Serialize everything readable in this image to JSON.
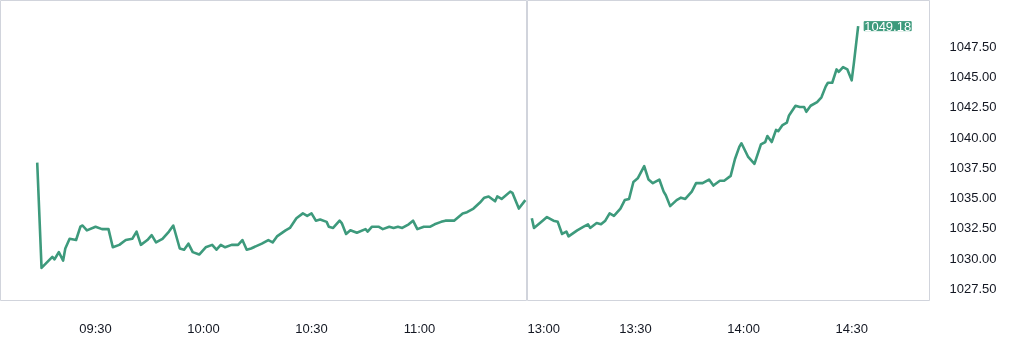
{
  "chart_data": [
    {
      "type": "line",
      "tick_labels": "x",
      "x": [
        9.23,
        9.25,
        9.3,
        9.31,
        9.33,
        9.35,
        9.36,
        9.38,
        9.41,
        9.43,
        9.44,
        9.46,
        9.5,
        9.53,
        9.56,
        9.58,
        9.61,
        9.64,
        9.67,
        9.69,
        9.71,
        9.74,
        9.76,
        9.78,
        9.81,
        9.84,
        9.86,
        9.89,
        9.91,
        9.93,
        9.95,
        9.98,
        10.01,
        10.04,
        10.06,
        10.08,
        10.1,
        10.13,
        10.16,
        10.18,
        10.2,
        10.22,
        10.27,
        10.3,
        10.32,
        10.34,
        10.38,
        10.4,
        10.43,
        10.46,
        10.48,
        10.5,
        10.52,
        10.54,
        10.57,
        10.58,
        10.6,
        10.63,
        10.64,
        10.66,
        10.68,
        10.71,
        10.75,
        10.76,
        10.78,
        10.81,
        10.83,
        10.86,
        10.88,
        10.9,
        10.92,
        10.95,
        10.97,
        10.99,
        11.02,
        11.05,
        11.07,
        11.1,
        11.12,
        11.16,
        11.2,
        11.22,
        11.25,
        11.28,
        11.3,
        11.32,
        11.35,
        11.36,
        11.38,
        11.42,
        11.43,
        11.46,
        11.49
      ],
      "series": [
        {
          "color": "#3d9a7c",
          "values": [
            1037.9,
            1029.2,
            1030.1,
            1029.9,
            1030.5,
            1029.8,
            1030.8,
            1031.6,
            1031.5,
            1032.6,
            1032.7,
            1032.3,
            1032.6,
            1032.4,
            1032.4,
            1030.9,
            1031.1,
            1031.5,
            1031.6,
            1032.2,
            1031.1,
            1031.5,
            1031.9,
            1031.3,
            1031.6,
            1032.2,
            1032.7,
            1030.8,
            1030.7,
            1031.2,
            1030.5,
            1030.3,
            1030.9,
            1031.1,
            1030.7,
            1031.1,
            1030.9,
            1031.1,
            1031.1,
            1031.5,
            1030.7,
            1030.8,
            1031.2,
            1031.5,
            1031.3,
            1031.8,
            1032.3,
            1032.5,
            1033.3,
            1033.7,
            1033.5,
            1033.7,
            1033.1,
            1033.2,
            1033.0,
            1032.6,
            1032.5,
            1033.1,
            1032.9,
            1032.0,
            1032.3,
            1032.1,
            1032.4,
            1032.2,
            1032.6,
            1032.6,
            1032.4,
            1032.6,
            1032.5,
            1032.6,
            1032.5,
            1032.8,
            1033.1,
            1032.4,
            1032.6,
            1032.6,
            1032.8,
            1033.0,
            1033.1,
            1033.1,
            1033.7,
            1033.8,
            1034.1,
            1034.6,
            1035.0,
            1035.1,
            1034.7,
            1035.1,
            1034.9,
            1035.5,
            1035.4,
            1034.1,
            1034.8
          ]
        }
      ],
      "xlim": [
        9.06,
        11.5
      ],
      "xticks": [
        {
          "value": 9.5,
          "label": "09:30"
        },
        {
          "value": 10,
          "label": "10:00"
        },
        {
          "value": 10.5,
          "label": "10:30"
        },
        {
          "value": 11,
          "label": "11:00"
        }
      ],
      "ylim": [
        1026.5,
        1051.3
      ]
    },
    {
      "type": "line",
      "x": [
        13.02,
        13.03,
        13.07,
        13.09,
        13.12,
        13.14,
        13.16,
        13.18,
        13.19,
        13.23,
        13.26,
        13.28,
        13.29,
        13.32,
        13.34,
        13.36,
        13.38,
        13.4,
        13.43,
        13.45,
        13.47,
        13.49,
        13.51,
        13.54,
        13.56,
        13.58,
        13.61,
        13.63,
        13.64,
        13.66,
        13.69,
        13.71,
        13.73,
        13.76,
        13.78,
        13.81,
        13.84,
        13.86,
        13.89,
        13.91,
        13.94,
        13.96,
        13.98,
        13.99,
        14.02,
        14.05,
        14.08,
        14.1,
        14.11,
        14.13,
        14.15,
        14.16,
        14.18,
        14.2,
        14.21,
        14.24,
        14.26,
        14.28,
        14.29,
        14.31,
        14.34,
        14.36,
        14.38,
        14.39,
        14.41,
        14.43,
        14.44,
        14.46,
        14.48,
        14.5,
        14.51,
        14.53
      ],
      "series": [
        {
          "color": "#3d9a7c",
          "values": [
            1033.3,
            1032.5,
            1033.1,
            1033.4,
            1033.1,
            1033.0,
            1032.0,
            1032.2,
            1031.8,
            1032.3,
            1032.6,
            1032.8,
            1032.5,
            1032.9,
            1032.8,
            1033.1,
            1033.7,
            1033.5,
            1034.1,
            1034.8,
            1034.9,
            1036.3,
            1036.6,
            1037.6,
            1036.5,
            1036.2,
            1036.5,
            1035.5,
            1035.2,
            1034.3,
            1034.8,
            1035.0,
            1034.9,
            1035.5,
            1036.2,
            1036.2,
            1036.5,
            1036.0,
            1036.4,
            1036.4,
            1036.8,
            1038.2,
            1039.2,
            1039.5,
            1038.4,
            1037.8,
            1039.4,
            1039.6,
            1040.1,
            1039.6,
            1040.6,
            1040.5,
            1041.0,
            1041.2,
            1041.8,
            1042.6,
            1042.5,
            1042.5,
            1042.1,
            1042.6,
            1042.9,
            1043.3,
            1044.2,
            1044.5,
            1044.5,
            1045.6,
            1045.4,
            1045.8,
            1045.6,
            1044.7,
            1046.1,
            1049.18
          ]
        }
      ],
      "xlim": [
        13,
        14.86
      ],
      "xticks": [
        {
          "value": 13,
          "label": "13:00"
        },
        {
          "value": 13.5,
          "label": "13:30"
        },
        {
          "value": 14,
          "label": "14:00"
        },
        {
          "value": 14.5,
          "label": "14:30"
        }
      ],
      "ylim": [
        1026.5,
        1051.3
      ],
      "yticks": [
        {
          "value": 1027.5,
          "label": "1027.50"
        },
        {
          "value": 1030,
          "label": "1030.00"
        },
        {
          "value": 1032.5,
          "label": "1032.50"
        },
        {
          "value": 1035,
          "label": "1035.00"
        },
        {
          "value": 1037.5,
          "label": "1037.50"
        },
        {
          "value": 1040,
          "label": "1040.00"
        },
        {
          "value": 1042.5,
          "label": "1042.50"
        },
        {
          "value": 1045,
          "label": "1045.00"
        },
        {
          "value": 1047.5,
          "label": "1047.50"
        }
      ],
      "annotations": [
        {
          "text": "1049.18",
          "x": 14.53,
          "y": 1049.18
        }
      ]
    }
  ]
}
